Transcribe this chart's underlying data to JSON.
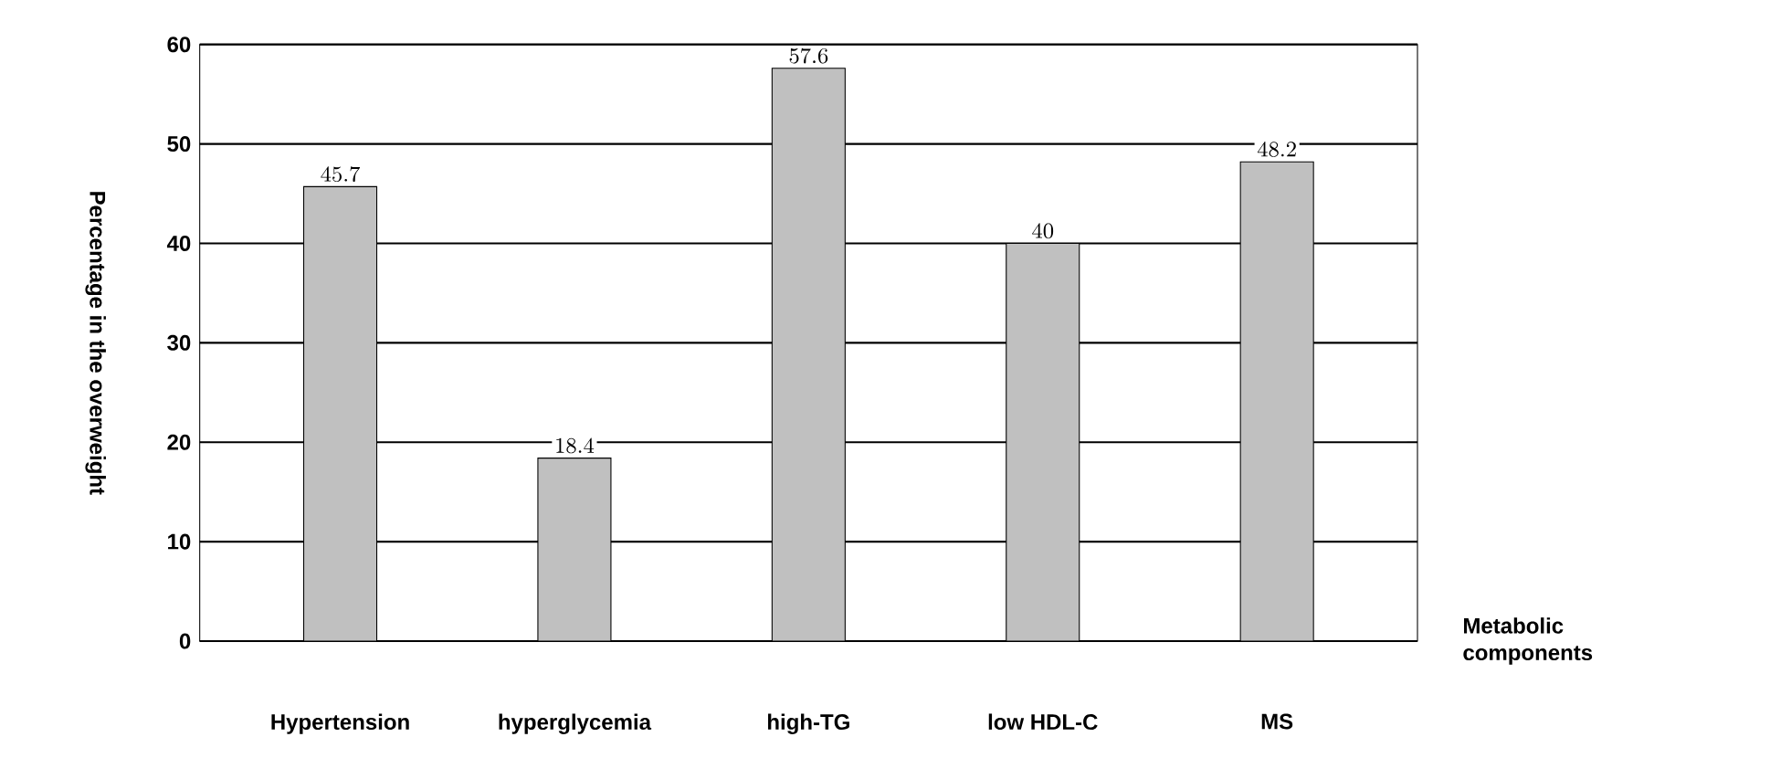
{
  "chart_data": {
    "type": "bar",
    "xlabel": "Metabolic components",
    "ylabel": "Percentage in the overweight",
    "categories": [
      "Hypertension",
      "hyperglycemia",
      "high-TG",
      "low HDL-C",
      "MS"
    ],
    "values": [
      45.7,
      18.4,
      57.6,
      40,
      48.2
    ],
    "color": "#c0c0c0",
    "ylim": [
      0,
      60
    ],
    "yticks": [
      0,
      10,
      20,
      30,
      40,
      50,
      60
    ],
    "grid": "y",
    "data_labels": true
  }
}
